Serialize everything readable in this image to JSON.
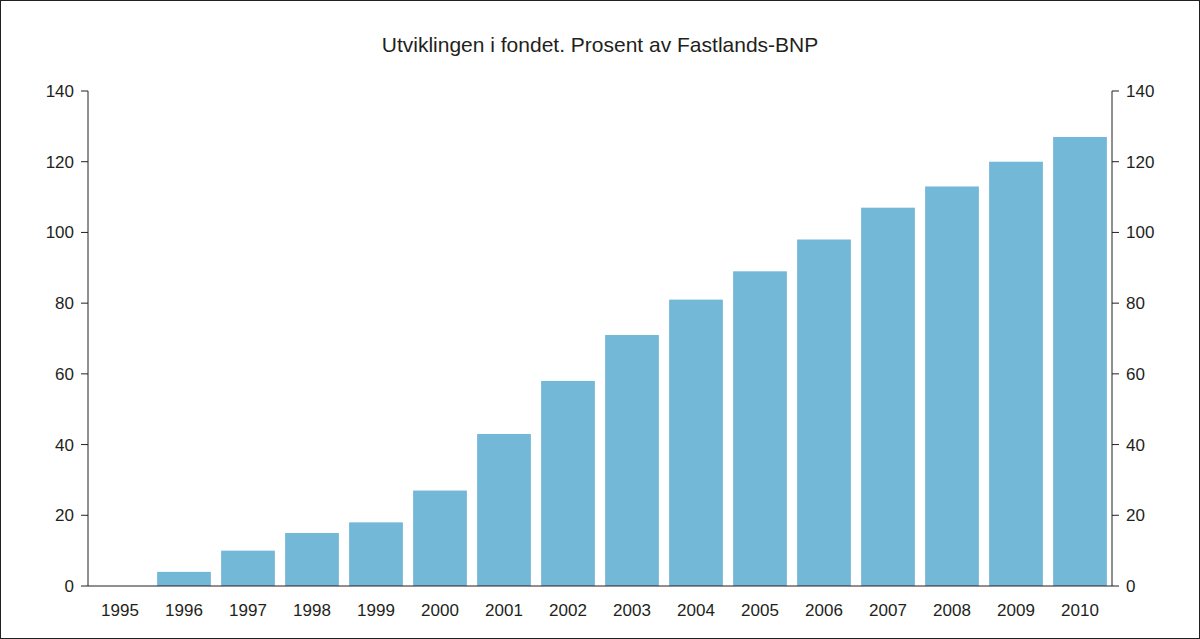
{
  "chart_data": {
    "type": "bar",
    "title": "Utviklingen i fondet. Prosent av Fastlands-BNP",
    "categories": [
      "1995",
      "1996",
      "1997",
      "1998",
      "1999",
      "2000",
      "2001",
      "2002",
      "2003",
      "2004",
      "2005",
      "2006",
      "2007",
      "2008",
      "2009",
      "2010"
    ],
    "values": [
      0,
      4,
      10,
      15,
      18,
      27,
      43,
      58,
      71,
      81,
      89,
      98,
      107,
      113,
      120,
      127
    ],
    "color": "#74b8d8",
    "ylim": [
      0,
      140
    ],
    "yticks": [
      0,
      20,
      40,
      60,
      80,
      100,
      120,
      140
    ],
    "y2lim": [
      0,
      140
    ],
    "y2ticks": [
      0,
      20,
      40,
      60,
      80,
      100,
      120,
      140
    ],
    "grid": false,
    "data_labels": false
  }
}
